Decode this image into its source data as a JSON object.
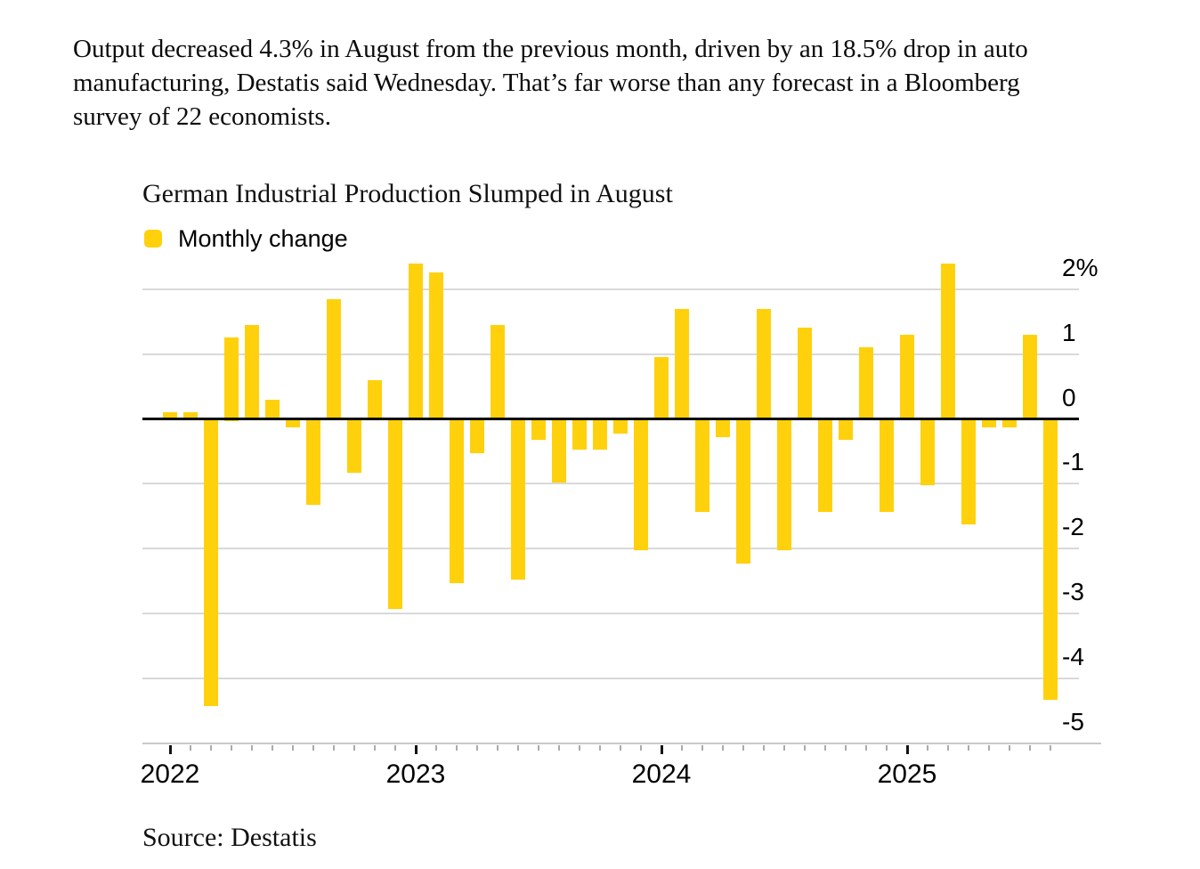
{
  "article": {
    "paragraph_lines": [
      "Output decreased 4.3% in August from the previous month, driven by an 18.5% drop in auto",
      "manufacturing, Destatis said Wednesday. That’s far worse than any forecast in a Bloomberg",
      "survey of 22 economists."
    ]
  },
  "chart": {
    "title": "German Industrial Production Slumped in August",
    "legend_label": "Monthly change",
    "source": "Source: Destatis",
    "colors": {
      "bar": "#FFD10D",
      "grid": "#D9D9D9",
      "zero_line": "#000000",
      "axis_line": "#C9C9C9",
      "tick_minor": "#ABABAB",
      "tick_major": "#141414",
      "text": "#000000"
    },
    "y_ticks": [
      {
        "label": "2%",
        "value": 2
      },
      {
        "label": "1",
        "value": 1
      },
      {
        "label": "0",
        "value": 0
      },
      {
        "label": "-1",
        "value": -1
      },
      {
        "label": "-2",
        "value": -2
      },
      {
        "label": "-3",
        "value": -3
      },
      {
        "label": "-4",
        "value": -4
      },
      {
        "label": "-5",
        "value": -5
      }
    ],
    "x_ticks": [
      {
        "label": "2022",
        "month_index": 0
      },
      {
        "label": "2023",
        "month_index": 12
      },
      {
        "label": "2024",
        "month_index": 24
      },
      {
        "label": "2025",
        "month_index": 36
      }
    ]
  },
  "chart_data": {
    "type": "bar",
    "title": "German Industrial Production Slumped in August",
    "x": [
      "Jan 2022",
      "Feb 2022",
      "Mar 2022",
      "Apr 2022",
      "May 2022",
      "Jun 2022",
      "Jul 2022",
      "Aug 2022",
      "Sep 2022",
      "Oct 2022",
      "Nov 2022",
      "Dec 2022",
      "Jan 2023",
      "Feb 2023",
      "Mar 2023",
      "Apr 2023",
      "May 2023",
      "Jun 2023",
      "Jul 2023",
      "Aug 2023",
      "Sep 2023",
      "Oct 2023",
      "Nov 2023",
      "Dec 2023",
      "Jan 2024",
      "Feb 2024",
      "Mar 2024",
      "Apr 2024",
      "May 2024",
      "Jun 2024",
      "Jul 2024",
      "Aug 2024",
      "Sep 2024",
      "Oct 2024",
      "Nov 2024",
      "Dec 2024",
      "Jan 2025",
      "Feb 2025",
      "Mar 2025",
      "Apr 2025",
      "May 2025",
      "Jun 2025",
      "Jul 2025",
      "Aug 2025"
    ],
    "series": [
      {
        "name": "Monthly change",
        "unit": "%",
        "values": [
          0.1,
          0.1,
          -4.4,
          1.25,
          1.45,
          0.3,
          -0.1,
          -1.3,
          1.85,
          -0.8,
          0.6,
          -2.9,
          2.4,
          2.25,
          -2.5,
          -0.5,
          1.45,
          -2.45,
          -0.3,
          -0.95,
          -0.45,
          -0.45,
          -0.2,
          -2.0,
          0.95,
          1.7,
          -1.4,
          -0.25,
          -2.2,
          1.7,
          -2.0,
          1.4,
          -1.4,
          -0.3,
          1.1,
          -1.4,
          1.3,
          -1.0,
          2.4,
          -1.6,
          -0.1,
          -0.1,
          1.3,
          -4.3
        ]
      }
    ],
    "xlabel": "",
    "ylabel": "",
    "y_tick_labels": [
      "2%",
      "1",
      "0",
      "-1",
      "-2",
      "-3",
      "-4",
      "-5"
    ],
    "x_tick_labels": [
      "2022",
      "2023",
      "2024",
      "2025"
    ],
    "ylim": [
      -5,
      2.5
    ],
    "grid": "horizontal",
    "legend_position": "top-left",
    "y_axis_side": "right",
    "bar_color": "#FFD10D",
    "source": "Destatis"
  }
}
